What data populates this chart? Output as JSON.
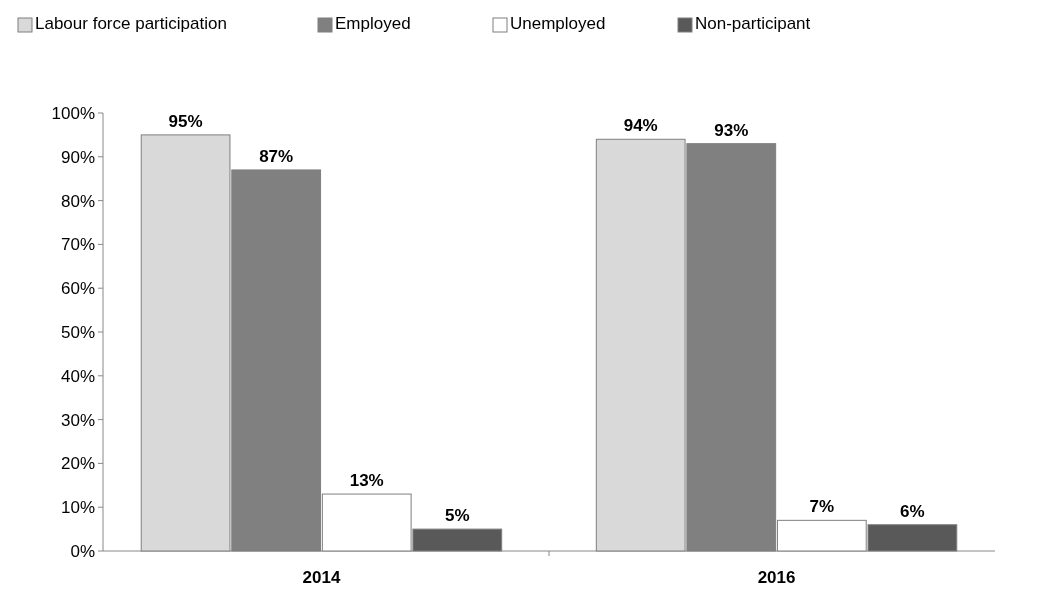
{
  "chart_data": {
    "type": "bar",
    "categories": [
      "2014",
      "2016"
    ],
    "series": [
      {
        "name": "Labour force participation",
        "color": "#d9d9d9",
        "values": [
          95,
          94
        ],
        "value_labels": [
          "95%",
          "94%"
        ]
      },
      {
        "name": "Employed",
        "color": "#808080",
        "values": [
          87,
          93
        ],
        "value_labels": [
          "87%",
          "93%"
        ]
      },
      {
        "name": "Unemployed",
        "color": "#ffffff",
        "values": [
          13,
          7
        ],
        "value_labels": [
          "13%",
          "7%"
        ]
      },
      {
        "name": "Non-participant",
        "color": "#595959",
        "values": [
          5,
          6
        ],
        "value_labels": [
          "5%",
          "6%"
        ]
      }
    ],
    "ylim": [
      0,
      100
    ],
    "yticks": [
      {
        "value": 0,
        "label": "0%"
      },
      {
        "value": 10,
        "label": "10%"
      },
      {
        "value": 20,
        "label": "20%"
      },
      {
        "value": 30,
        "label": "30%"
      },
      {
        "value": 40,
        "label": "40%"
      },
      {
        "value": 50,
        "label": "50%"
      },
      {
        "value": 60,
        "label": "60%"
      },
      {
        "value": 70,
        "label": "70%"
      },
      {
        "value": 80,
        "label": "80%"
      },
      {
        "value": 90,
        "label": "90%"
      },
      {
        "value": 100,
        "label": "100%"
      }
    ],
    "grid": false,
    "legend": "top"
  }
}
